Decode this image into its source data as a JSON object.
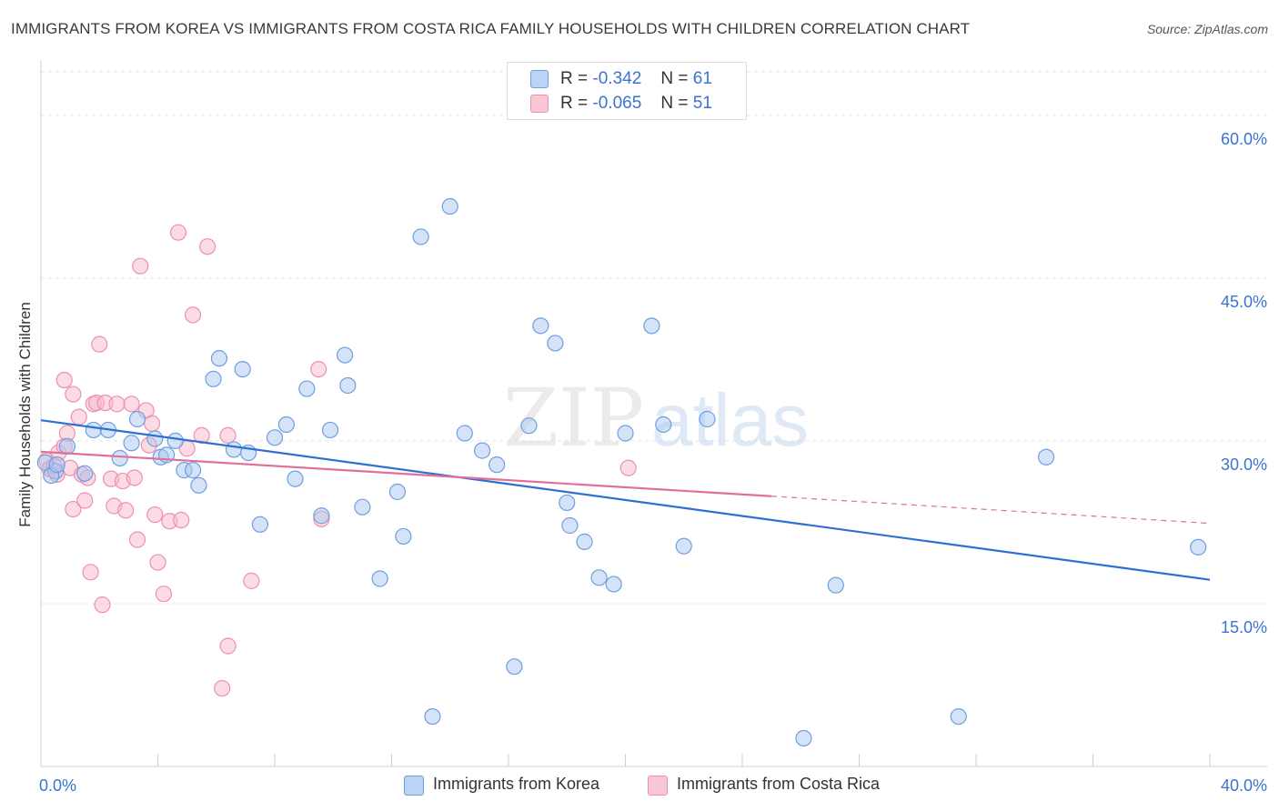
{
  "title": "IMMIGRANTS FROM KOREA VS IMMIGRANTS FROM COSTA RICA FAMILY HOUSEHOLDS WITH CHILDREN CORRELATION CHART",
  "source": "Source: ZipAtlas.com",
  "watermark": {
    "zip": "ZIP",
    "atlas": "atlas"
  },
  "legend": {
    "r_label": "R =",
    "n_label": "N =",
    "korea": {
      "r": "-0.342",
      "n": "61"
    },
    "costa_rica": {
      "r": "-0.065",
      "n": "51"
    }
  },
  "colors": {
    "korea_fill": "#a9c8f0",
    "korea_stroke": "#6f9fe0",
    "korea_line": "#2e6fd2",
    "cr_fill": "#f7b9cc",
    "cr_stroke": "#ee8fb0",
    "cr_line": "#e0709a",
    "axis_text": "#3a74d0",
    "grid": "#e3e3e3"
  },
  "chart_data": {
    "type": "scatter",
    "title": "IMMIGRANTS FROM KOREA VS IMMIGRANTS FROM COSTA RICA FAMILY HOUSEHOLDS WITH CHILDREN CORRELATION CHART",
    "xlabel": "",
    "ylabel": "Family Households with Children",
    "xlim": [
      0,
      40
    ],
    "ylim": [
      0,
      64
    ],
    "x_tick_labels": [
      "0.0%",
      "40.0%"
    ],
    "y_ticks": [
      15,
      30,
      45,
      60
    ],
    "y_tick_labels": [
      "15.0%",
      "30.0%",
      "45.0%",
      "60.0%"
    ],
    "series": [
      {
        "name": "Immigrants from Korea",
        "r": -0.342,
        "n": 61,
        "trend": {
          "x0": 0,
          "y0": 31.9,
          "x1": 40,
          "y1": 17.2
        },
        "points": [
          [
            0.5,
            27.2
          ],
          [
            0.9,
            29.5
          ],
          [
            1.5,
            27.0
          ],
          [
            1.8,
            31.0
          ],
          [
            2.3,
            31.0
          ],
          [
            2.7,
            28.4
          ],
          [
            3.1,
            29.8
          ],
          [
            3.3,
            32.0
          ],
          [
            3.9,
            30.2
          ],
          [
            4.1,
            28.5
          ],
          [
            4.3,
            28.7
          ],
          [
            4.6,
            30.0
          ],
          [
            4.9,
            27.3
          ],
          [
            5.2,
            27.3
          ],
          [
            5.4,
            25.9
          ],
          [
            5.9,
            35.7
          ],
          [
            6.1,
            37.6
          ],
          [
            6.6,
            29.2
          ],
          [
            6.9,
            36.6
          ],
          [
            7.1,
            28.9
          ],
          [
            7.5,
            22.3
          ],
          [
            8.0,
            30.3
          ],
          [
            8.4,
            31.5
          ],
          [
            8.7,
            26.5
          ],
          [
            9.1,
            34.8
          ],
          [
            9.6,
            23.1
          ],
          [
            9.9,
            31.0
          ],
          [
            10.4,
            37.9
          ],
          [
            10.5,
            35.1
          ],
          [
            11.0,
            23.9
          ],
          [
            11.6,
            17.3
          ],
          [
            12.2,
            25.3
          ],
          [
            12.4,
            21.2
          ],
          [
            13.0,
            48.8
          ],
          [
            13.4,
            4.6
          ],
          [
            14.0,
            51.6
          ],
          [
            14.5,
            30.7
          ],
          [
            15.1,
            29.1
          ],
          [
            15.6,
            27.8
          ],
          [
            16.2,
            9.2
          ],
          [
            16.7,
            31.4
          ],
          [
            17.1,
            40.6
          ],
          [
            17.6,
            39.0
          ],
          [
            18.0,
            24.3
          ],
          [
            18.1,
            22.2
          ],
          [
            18.6,
            20.7
          ],
          [
            19.1,
            17.4
          ],
          [
            19.6,
            16.8
          ],
          [
            20.0,
            30.7
          ],
          [
            20.9,
            40.6
          ],
          [
            21.3,
            31.5
          ],
          [
            22.0,
            20.3
          ],
          [
            22.8,
            32.0
          ],
          [
            26.1,
            2.6
          ],
          [
            27.2,
            16.7
          ],
          [
            31.4,
            4.6
          ],
          [
            34.4,
            28.5
          ],
          [
            39.6,
            20.2
          ],
          [
            0.15,
            28.0
          ],
          [
            0.35,
            26.8
          ],
          [
            0.55,
            27.8
          ]
        ]
      },
      {
        "name": "Immigrants from Costa Rica",
        "r": -0.065,
        "n": 51,
        "trend": {
          "x0": 0,
          "y0": 29.0,
          "x1": 25.0,
          "y1": 24.9
        },
        "trend_dashed": {
          "x0": 25.0,
          "y0": 24.9,
          "x1": 40,
          "y1": 22.4
        },
        "points": [
          [
            0.2,
            28.2
          ],
          [
            0.4,
            27.3
          ],
          [
            0.6,
            28.9
          ],
          [
            0.8,
            29.5
          ],
          [
            0.9,
            30.7
          ],
          [
            0.8,
            35.6
          ],
          [
            1.0,
            27.5
          ],
          [
            1.1,
            23.7
          ],
          [
            1.1,
            34.3
          ],
          [
            1.3,
            32.2
          ],
          [
            1.4,
            26.9
          ],
          [
            1.5,
            24.5
          ],
          [
            1.6,
            26.6
          ],
          [
            1.7,
            17.9
          ],
          [
            1.8,
            33.4
          ],
          [
            1.9,
            33.5
          ],
          [
            2.0,
            38.9
          ],
          [
            2.1,
            14.9
          ],
          [
            2.2,
            33.5
          ],
          [
            2.4,
            26.5
          ],
          [
            2.5,
            24.0
          ],
          [
            2.6,
            33.4
          ],
          [
            2.8,
            26.3
          ],
          [
            2.9,
            23.6
          ],
          [
            3.1,
            33.4
          ],
          [
            3.2,
            26.6
          ],
          [
            3.3,
            20.9
          ],
          [
            3.4,
            46.1
          ],
          [
            3.6,
            32.8
          ],
          [
            3.7,
            29.6
          ],
          [
            3.8,
            31.6
          ],
          [
            3.9,
            23.2
          ],
          [
            4.0,
            18.8
          ],
          [
            4.2,
            15.9
          ],
          [
            4.4,
            22.6
          ],
          [
            4.7,
            49.2
          ],
          [
            4.8,
            22.7
          ],
          [
            5.0,
            29.3
          ],
          [
            5.2,
            41.6
          ],
          [
            5.5,
            30.5
          ],
          [
            5.7,
            47.9
          ],
          [
            6.2,
            7.2
          ],
          [
            6.4,
            11.1
          ],
          [
            6.4,
            30.5
          ],
          [
            7.2,
            17.1
          ],
          [
            9.5,
            36.6
          ],
          [
            9.6,
            22.8
          ],
          [
            20.1,
            27.5
          ],
          [
            0.3,
            27.4
          ],
          [
            0.55,
            26.9
          ],
          [
            0.45,
            27.7
          ]
        ]
      }
    ]
  },
  "bottom_legend": [
    "Immigrants from Korea",
    "Immigrants from Costa Rica"
  ]
}
